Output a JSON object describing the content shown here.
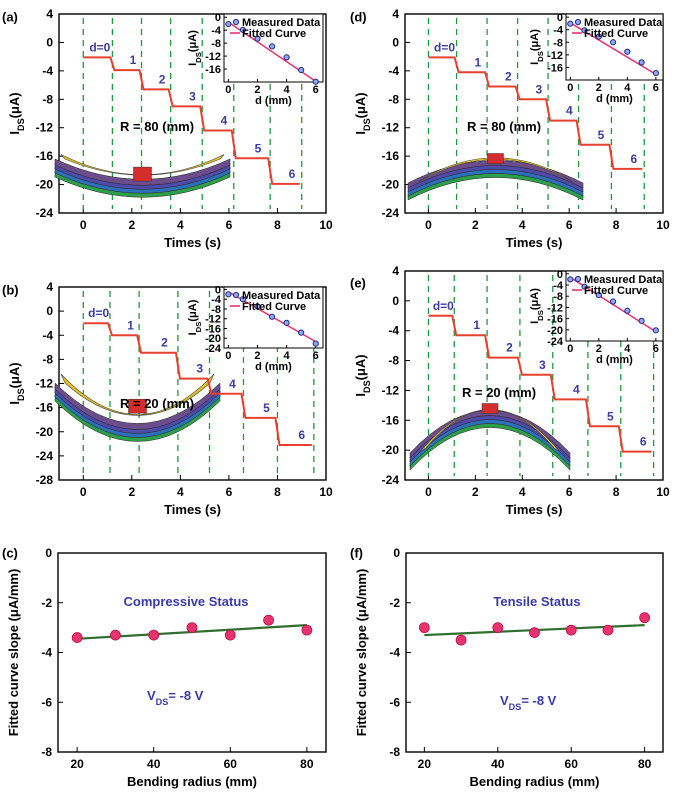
{
  "colors": {
    "step": "#e8402e",
    "dash": "#1f9a3c",
    "fit": "#e8336f",
    "marker": "#e8336f",
    "fitline": "#2f6e2f",
    "purple": "#3d3da0"
  },
  "chart_data": [
    {
      "id": "a",
      "panel_label": "(a)",
      "type": "line",
      "xlabel": "Times (s)",
      "ylabel": "I",
      "ylabel_sub": "DS",
      "ylabel_unit": "(μA)",
      "xlim": [
        -1,
        10
      ],
      "ylim": [
        -24,
        4
      ],
      "xticks": [
        "0",
        "2",
        "4",
        "6",
        "8",
        "10"
      ],
      "yticks": [
        "4",
        "0",
        "-4",
        "-8",
        "-12",
        "-16",
        "-20",
        "-24"
      ],
      "annotation": "R = 80 (mm)",
      "illustration": "compressive",
      "steps": [
        {
          "label": "d=0",
          "t0": 0,
          "t1": 1.2,
          "value": -2.1
        },
        {
          "label": "1",
          "t0": 1.2,
          "t1": 2.4,
          "value": -3.9
        },
        {
          "label": "2",
          "t0": 2.4,
          "t1": 3.6,
          "value": -6.6
        },
        {
          "label": "3",
          "t0": 3.6,
          "t1": 4.9,
          "value": -9.0
        },
        {
          "label": "4",
          "t0": 4.9,
          "t1": 6.2,
          "value": -12.4
        },
        {
          "label": "5",
          "t0": 6.2,
          "t1": 7.7,
          "value": -16.3
        },
        {
          "label": "6",
          "t0": 7.7,
          "t1": 9.0,
          "value": -19.9
        }
      ],
      "dashes": [
        0,
        1.2,
        2.4,
        3.6,
        4.9,
        6.2,
        7.7,
        9.0
      ],
      "inset": {
        "legend": [
          "Measured Data",
          "Fitted Curve"
        ],
        "xlabel": "d (mm)",
        "ylabel": "I",
        "ylabel_sub": "DS",
        "ylabel_unit": "(μA)",
        "xlim": [
          -0.3,
          6.5
        ],
        "ylim": [
          -20,
          1
        ],
        "xticks": [
          "0",
          "2",
          "4",
          "6"
        ],
        "yticks": [
          "0",
          "-4",
          "-8",
          "-12",
          "-16"
        ],
        "x": [
          0,
          1,
          2,
          3,
          4,
          5,
          6
        ],
        "y": [
          -2.1,
          -3.9,
          -6.6,
          -9.0,
          -12.4,
          -16.3,
          -19.9
        ],
        "fit": [
          [
            0,
            -1.5
          ],
          [
            6,
            -19.8
          ]
        ]
      }
    },
    {
      "id": "d",
      "panel_label": "(d)",
      "type": "line",
      "xlabel": "Times (s)",
      "ylabel": "I",
      "ylabel_sub": "DS",
      "ylabel_unit": "(μA)",
      "xlim": [
        -1,
        10
      ],
      "ylim": [
        -24,
        4
      ],
      "xticks": [
        "0",
        "2",
        "4",
        "6",
        "8",
        "10"
      ],
      "yticks": [
        "4",
        "0",
        "-4",
        "-8",
        "-12",
        "-16",
        "-20",
        "-24"
      ],
      "annotation": "R = 80 (mm)",
      "illustration": "tensile",
      "steps": [
        {
          "label": "d=0",
          "t0": 0,
          "t1": 1.2,
          "value": -2.1
        },
        {
          "label": "1",
          "t0": 1.2,
          "t1": 2.5,
          "value": -4.2
        },
        {
          "label": "2",
          "t0": 2.5,
          "t1": 3.8,
          "value": -6.2
        },
        {
          "label": "3",
          "t0": 3.8,
          "t1": 5.1,
          "value": -8.0
        },
        {
          "label": "4",
          "t0": 5.1,
          "t1": 6.4,
          "value": -11.0
        },
        {
          "label": "5",
          "t0": 6.4,
          "t1": 7.8,
          "value": -14.4
        },
        {
          "label": "6",
          "t0": 7.8,
          "t1": 9.2,
          "value": -17.8
        }
      ],
      "dashes": [
        0,
        1.2,
        2.5,
        3.8,
        5.1,
        6.4,
        7.8,
        9.2
      ],
      "inset": {
        "legend": [
          "Measured Data",
          "Fitted Curve"
        ],
        "xlabel": "d (mm)",
        "ylabel": "I",
        "ylabel_sub": "DS",
        "ylabel_unit": "(μA)",
        "xlim": [
          -0.3,
          6.5
        ],
        "ylim": [
          -20,
          1
        ],
        "xticks": [
          "0",
          "2",
          "4",
          "6"
        ],
        "yticks": [
          "0",
          "-4",
          "-8",
          "-12",
          "-16"
        ],
        "x": [
          0,
          1,
          2,
          3,
          4,
          5,
          6
        ],
        "y": [
          -2.1,
          -4.2,
          -6.2,
          -8.0,
          -11.0,
          -14.4,
          -17.8
        ],
        "fit": [
          [
            0,
            -1.8
          ],
          [
            6,
            -18.2
          ]
        ]
      }
    },
    {
      "id": "b",
      "panel_label": "(b)",
      "type": "line",
      "xlabel": "Times (s)",
      "ylabel": "I",
      "ylabel_sub": "DS",
      "ylabel_unit": "(μA)",
      "xlim": [
        -1,
        10
      ],
      "ylim": [
        -28,
        4
      ],
      "xticks": [
        "0",
        "2",
        "4",
        "6",
        "8",
        "10"
      ],
      "yticks": [
        "4",
        "0",
        "-4",
        "-8",
        "-12",
        "-16",
        "-20",
        "-24",
        "-28"
      ],
      "annotation": "R = 20 (mm)",
      "illustration": "compressive",
      "steps": [
        {
          "label": "d=0",
          "t0": 0,
          "t1": 1.1,
          "value": -2.0
        },
        {
          "label": "1",
          "t0": 1.1,
          "t1": 2.3,
          "value": -4.0
        },
        {
          "label": "2",
          "t0": 2.3,
          "t1": 3.9,
          "value": -6.9
        },
        {
          "label": "3",
          "t0": 3.9,
          "t1": 5.2,
          "value": -11.2
        },
        {
          "label": "4",
          "t0": 5.2,
          "t1": 6.6,
          "value": -13.7
        },
        {
          "label": "5",
          "t0": 6.6,
          "t1": 8.0,
          "value": -17.7
        },
        {
          "label": "6",
          "t0": 8.0,
          "t1": 9.5,
          "value": -22.2
        }
      ],
      "dashes": [
        0,
        1.1,
        2.3,
        3.9,
        5.2,
        6.6,
        8.0,
        9.5
      ],
      "inset": {
        "legend": [
          "Measured Data",
          "Fitted Curve"
        ],
        "xlabel": "d (mm)",
        "ylabel": "I",
        "ylabel_sub": "DS",
        "ylabel_unit": "(μA)",
        "xlim": [
          -0.3,
          6.5
        ],
        "ylim": [
          -24,
          1
        ],
        "xticks": [
          "0",
          "2",
          "4",
          "6"
        ],
        "yticks": [
          "0",
          "-4",
          "-8",
          "-12",
          "-16",
          "-20",
          "-24"
        ],
        "x": [
          0,
          1,
          2,
          3,
          4,
          5,
          6
        ],
        "y": [
          -2.0,
          -4.0,
          -6.9,
          -11.2,
          -13.7,
          -17.7,
          -22.2
        ],
        "fit": [
          [
            0,
            -1.0
          ],
          [
            6,
            -21.4
          ]
        ]
      }
    },
    {
      "id": "e",
      "panel_label": "(e)",
      "type": "line",
      "xlabel": "Times (s)",
      "ylabel": "I",
      "ylabel_sub": "DS",
      "ylabel_unit": "(μA)",
      "xlim": [
        -1,
        10
      ],
      "ylim": [
        -24,
        4
      ],
      "xticks": [
        "0",
        "2",
        "4",
        "6",
        "8",
        "10"
      ],
      "yticks": [
        "4",
        "0",
        "-4",
        "-8",
        "-12",
        "-16",
        "-20",
        "-24"
      ],
      "annotation": "R = 20 (mm)",
      "illustration": "tensile",
      "steps": [
        {
          "label": "d=0",
          "t0": 0,
          "t1": 1.1,
          "value": -2.0
        },
        {
          "label": "1",
          "t0": 1.1,
          "t1": 2.5,
          "value": -4.6
        },
        {
          "label": "2",
          "t0": 2.5,
          "t1": 3.9,
          "value": -7.6
        },
        {
          "label": "3",
          "t0": 3.9,
          "t1": 5.3,
          "value": -9.9
        },
        {
          "label": "4",
          "t0": 5.3,
          "t1": 6.8,
          "value": -13.2
        },
        {
          "label": "5",
          "t0": 6.8,
          "t1": 8.2,
          "value": -16.8
        },
        {
          "label": "6",
          "t0": 8.2,
          "t1": 9.6,
          "value": -20.2
        }
      ],
      "dashes": [
        0,
        1.1,
        2.5,
        3.9,
        5.3,
        6.8,
        8.2,
        9.6
      ],
      "inset": {
        "legend": [
          "Measured Data",
          "Fitted Curve"
        ],
        "xlabel": "d (mm)",
        "ylabel": "I",
        "ylabel_sub": "DS",
        "ylabel_unit": "(μA)",
        "xlim": [
          -0.3,
          6.5
        ],
        "ylim": [
          -24,
          1
        ],
        "xticks": [
          "0",
          "2",
          "4",
          "6"
        ],
        "yticks": [
          "0",
          "-4",
          "-8",
          "-12",
          "-16",
          "-20",
          "-24"
        ],
        "x": [
          0,
          1,
          2,
          3,
          4,
          5,
          6
        ],
        "y": [
          -2.0,
          -4.6,
          -7.6,
          -9.9,
          -13.2,
          -16.8,
          -20.2
        ],
        "fit": [
          [
            0,
            -1.3
          ],
          [
            6,
            -20.7
          ]
        ]
      }
    },
    {
      "id": "c",
      "panel_label": "(c)",
      "type": "scatter",
      "xlabel": "Bending radius (mm)",
      "ylabel": "Fitted curve slope (μA/mm)",
      "xlim": [
        15,
        85
      ],
      "ylim": [
        -8,
        0
      ],
      "xticks": [
        "20",
        "40",
        "60",
        "80"
      ],
      "yticks": [
        "0",
        "-2",
        "-4",
        "-6",
        "-8"
      ],
      "status": "Compressive Status",
      "vds_prefix": "V",
      "vds_sub": "DS",
      "vds_value": "= -8 V",
      "x": [
        20,
        30,
        40,
        50,
        60,
        70,
        80
      ],
      "y": [
        -3.4,
        -3.3,
        -3.3,
        -3.0,
        -3.3,
        -2.7,
        -3.1
      ],
      "fit": [
        [
          20,
          -3.45
        ],
        [
          80,
          -2.9
        ]
      ]
    },
    {
      "id": "f",
      "panel_label": "(f)",
      "type": "scatter",
      "xlabel": "Bending radius (mm)",
      "ylabel": "Fitted curve slope (μA/mm)",
      "xlim": [
        15,
        85
      ],
      "ylim": [
        -8,
        0
      ],
      "xticks": [
        "20",
        "40",
        "60",
        "80"
      ],
      "yticks": [
        "0",
        "-2",
        "-4",
        "-6",
        "-8"
      ],
      "status": "Tensile Status",
      "vds_prefix": "V",
      "vds_sub": "DS",
      "vds_value": "= -8 V",
      "x": [
        20,
        30,
        40,
        50,
        60,
        70,
        80
      ],
      "y": [
        -3.0,
        -3.5,
        -3.0,
        -3.2,
        -3.1,
        -3.1,
        -2.6
      ],
      "fit": [
        [
          20,
          -3.3
        ],
        [
          80,
          -2.9
        ]
      ]
    }
  ]
}
